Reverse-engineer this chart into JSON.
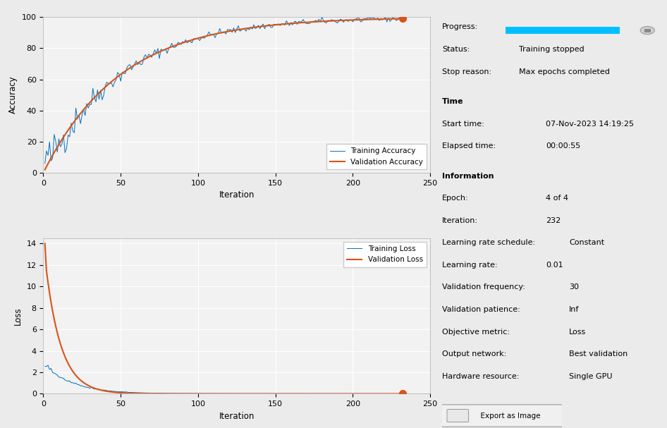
{
  "fig_width": 9.46,
  "fig_height": 6.07,
  "dpi": 100,
  "bg_color": "#ebebeb",
  "plot_bg_color": "#f2f2f2",
  "training_color": "#0072BD",
  "validation_color": "#D95319",
  "max_iter": 232,
  "progress_bar_color": "#00BFFF",
  "info": {
    "progress_label": "Progress:",
    "status_label": "Status:",
    "status_value": "Training stopped",
    "stop_reason_label": "Stop reason:",
    "stop_reason_value": "Max epochs completed",
    "time_header": "Time",
    "start_time_label": "Start time:",
    "start_time_value": "07-Nov-2023 14:19:25",
    "elapsed_label": "Elapsed time:",
    "elapsed_value": "00:00:55",
    "info_header": "Information",
    "epoch_label": "Epoch:",
    "epoch_value": "4 of 4",
    "iteration_label": "Iteration:",
    "iteration_value": "232",
    "lr_schedule_label": "Learning rate schedule:",
    "lr_schedule_value": "Constant",
    "lr_label": "Learning rate:",
    "lr_value": "0.01",
    "val_freq_label": "Validation frequency:",
    "val_freq_value": "30",
    "val_patience_label": "Validation patience:",
    "val_patience_value": "Inf",
    "obj_metric_label": "Objective metric:",
    "obj_metric_value": "Loss",
    "output_net_label": "Output network:",
    "output_net_value": "Best validation",
    "hardware_label": "Hardware resource:",
    "hardware_value": "Single GPU",
    "export_button": "  Export as Image"
  }
}
